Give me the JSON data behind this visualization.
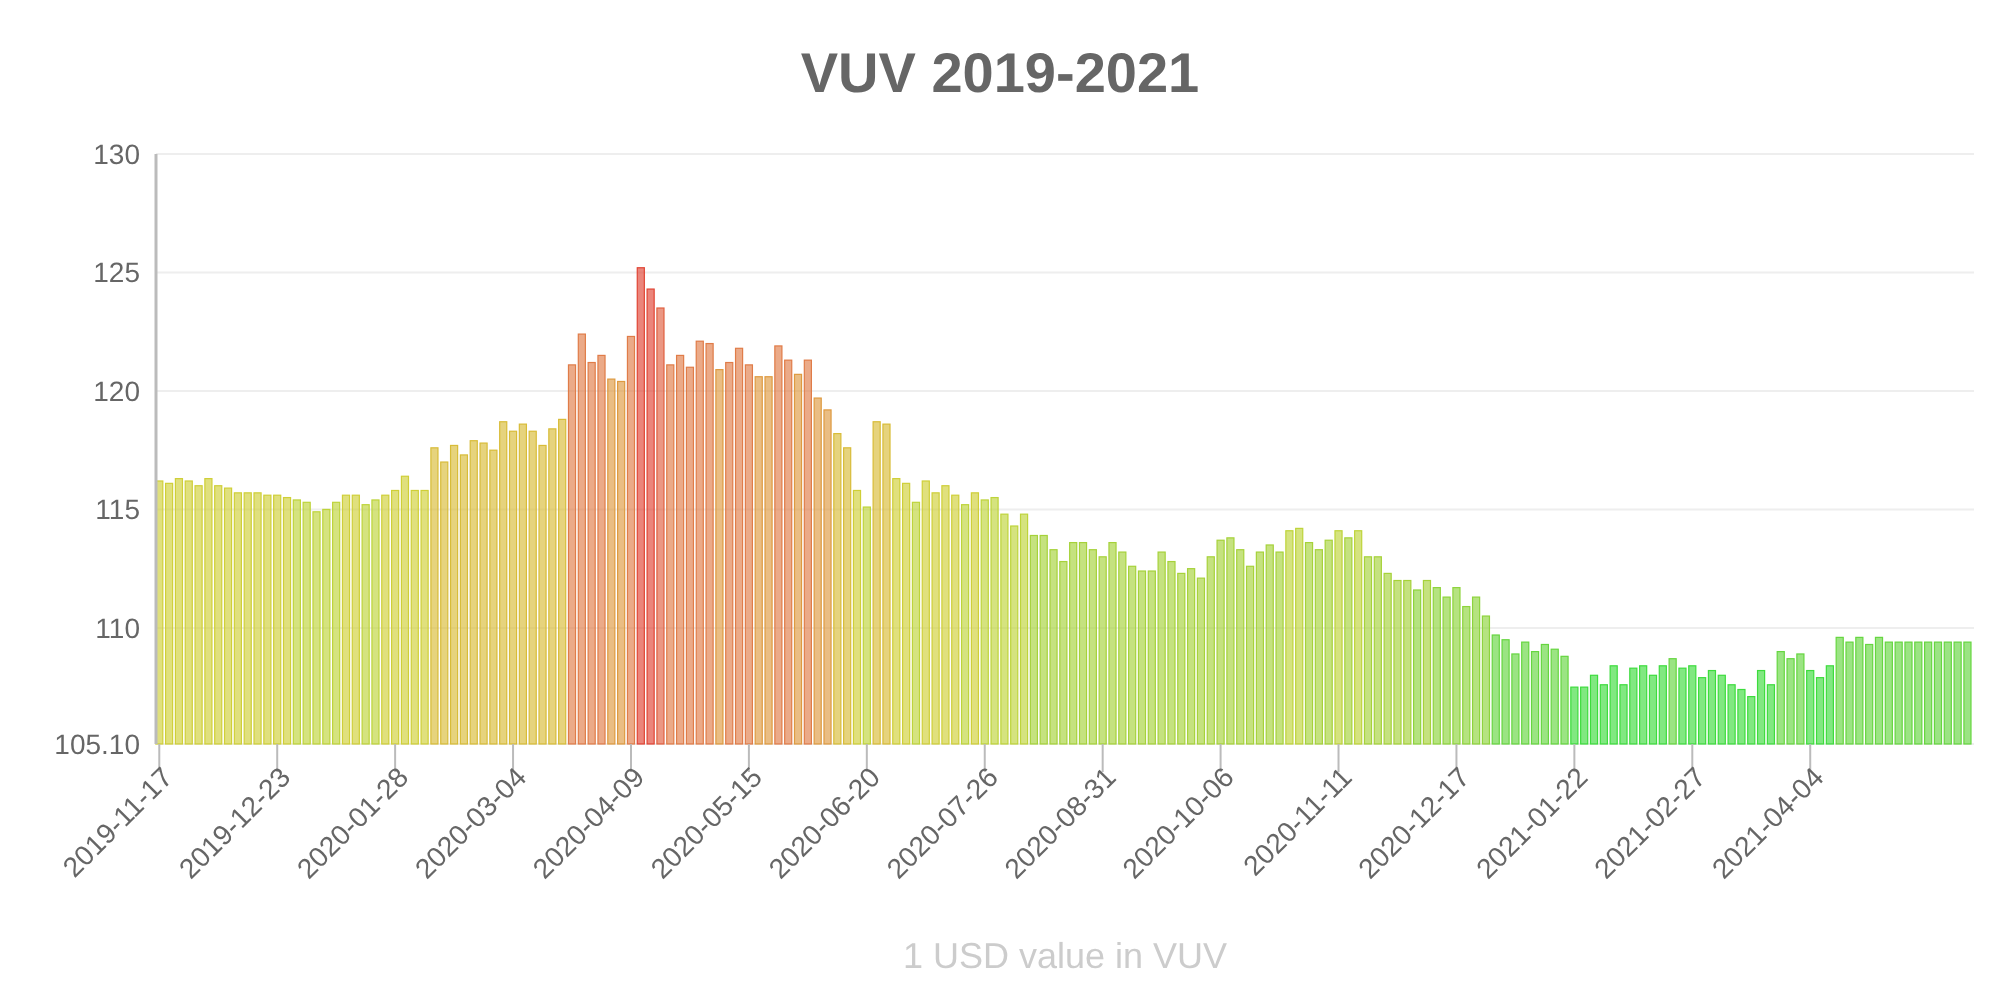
{
  "chart_data": {
    "type": "bar",
    "title": "VUV 2019-2021",
    "xlabel": "1 USD value in VUV",
    "x": [
      "2019-11-17",
      "2019-11-20",
      "2019-11-23",
      "2019-11-26",
      "2019-11-29",
      "2019-12-02",
      "2019-12-05",
      "2019-12-08",
      "2019-12-11",
      "2019-12-14",
      "2019-12-17",
      "2019-12-20",
      "2019-12-23",
      "2019-12-26",
      "2019-12-29",
      "2020-01-01",
      "2020-01-04",
      "2020-01-07",
      "2020-01-10",
      "2020-01-13",
      "2020-01-16",
      "2020-01-19",
      "2020-01-22",
      "2020-01-25",
      "2020-01-28",
      "2020-01-31",
      "2020-02-03",
      "2020-02-06",
      "2020-02-09",
      "2020-02-12",
      "2020-02-15",
      "2020-02-18",
      "2020-02-21",
      "2020-02-24",
      "2020-02-27",
      "2020-03-01",
      "2020-03-04",
      "2020-03-07",
      "2020-03-10",
      "2020-03-13",
      "2020-03-16",
      "2020-03-19",
      "2020-03-22",
      "2020-03-25",
      "2020-03-28",
      "2020-03-31",
      "2020-04-03",
      "2020-04-06",
      "2020-04-09",
      "2020-04-12",
      "2020-04-15",
      "2020-04-18",
      "2020-04-21",
      "2020-04-24",
      "2020-04-27",
      "2020-04-30",
      "2020-05-03",
      "2020-05-06",
      "2020-05-09",
      "2020-05-12",
      "2020-05-15",
      "2020-05-18",
      "2020-05-21",
      "2020-05-24",
      "2020-05-27",
      "2020-05-30",
      "2020-06-02",
      "2020-06-05",
      "2020-06-08",
      "2020-06-11",
      "2020-06-14",
      "2020-06-17",
      "2020-06-20",
      "2020-06-23",
      "2020-06-26",
      "2020-06-29",
      "2020-07-02",
      "2020-07-05",
      "2020-07-08",
      "2020-07-11",
      "2020-07-14",
      "2020-07-17",
      "2020-07-20",
      "2020-07-23",
      "2020-07-26",
      "2020-07-29",
      "2020-08-01",
      "2020-08-04",
      "2020-08-07",
      "2020-08-10",
      "2020-08-13",
      "2020-08-16",
      "2020-08-19",
      "2020-08-22",
      "2020-08-25",
      "2020-08-28",
      "2020-08-31",
      "2020-09-03",
      "2020-09-06",
      "2020-09-09",
      "2020-09-12",
      "2020-09-15",
      "2020-09-18",
      "2020-09-21",
      "2020-09-24",
      "2020-09-27",
      "2020-09-30",
      "2020-10-03",
      "2020-10-06",
      "2020-10-09",
      "2020-10-12",
      "2020-10-15",
      "2020-10-18",
      "2020-10-21",
      "2020-10-24",
      "2020-10-27",
      "2020-10-30",
      "2020-11-02",
      "2020-11-05",
      "2020-11-08",
      "2020-11-11",
      "2020-11-14",
      "2020-11-17",
      "2020-11-20",
      "2020-11-23",
      "2020-11-26",
      "2020-11-29",
      "2020-12-02",
      "2020-12-05",
      "2020-12-08",
      "2020-12-11",
      "2020-12-14",
      "2020-12-17",
      "2020-12-20",
      "2020-12-23",
      "2020-12-26",
      "2020-12-29",
      "2021-01-01",
      "2021-01-04",
      "2021-01-07",
      "2021-01-10",
      "2021-01-13",
      "2021-01-16",
      "2021-01-19",
      "2021-01-22",
      "2021-01-25",
      "2021-01-28",
      "2021-01-31",
      "2021-02-03",
      "2021-02-06",
      "2021-02-09",
      "2021-02-12",
      "2021-02-15",
      "2021-02-18",
      "2021-02-21",
      "2021-02-24",
      "2021-02-27",
      "2021-03-02",
      "2021-03-05",
      "2021-03-08",
      "2021-03-11",
      "2021-03-14",
      "2021-03-17",
      "2021-03-20",
      "2021-03-23",
      "2021-03-26",
      "2021-03-29",
      "2021-04-01",
      "2021-04-04",
      "2021-04-07",
      "2021-04-10",
      "2021-04-13",
      "2021-04-16",
      "2021-04-19",
      "2021-04-22",
      "2021-04-25",
      "2021-04-28",
      "2021-05-01",
      "2021-05-04",
      "2021-05-07",
      "2021-05-10",
      "2021-05-13",
      "2021-05-16",
      "2021-05-19",
      "2021-05-22"
    ],
    "values": [
      116.2,
      116.1,
      116.3,
      116.2,
      116.0,
      116.3,
      116.0,
      115.9,
      115.7,
      115.7,
      115.7,
      115.6,
      115.6,
      115.5,
      115.4,
      115.3,
      114.9,
      115.0,
      115.3,
      115.6,
      115.6,
      115.2,
      115.4,
      115.6,
      115.8,
      116.4,
      115.8,
      115.8,
      117.6,
      117.0,
      117.7,
      117.3,
      117.9,
      117.8,
      117.5,
      118.7,
      118.3,
      118.6,
      118.3,
      117.7,
      118.4,
      118.8,
      121.1,
      122.4,
      121.2,
      121.5,
      120.5,
      120.4,
      122.3,
      125.2,
      124.3,
      123.5,
      121.1,
      121.5,
      121.0,
      122.1,
      122.0,
      120.9,
      121.2,
      121.8,
      121.1,
      120.6,
      120.6,
      121.9,
      121.3,
      120.7,
      121.3,
      119.7,
      119.2,
      118.2,
      117.6,
      115.8,
      115.1,
      118.7,
      118.6,
      116.3,
      116.1,
      115.3,
      116.2,
      115.7,
      116.0,
      115.6,
      115.2,
      115.7,
      115.4,
      115.5,
      114.8,
      114.3,
      114.8,
      113.9,
      113.9,
      113.3,
      112.8,
      113.6,
      113.6,
      113.3,
      113.0,
      113.6,
      113.2,
      112.6,
      112.4,
      112.4,
      113.2,
      112.8,
      112.3,
      112.5,
      112.1,
      113.0,
      113.7,
      113.8,
      113.3,
      112.6,
      113.2,
      113.5,
      113.2,
      114.1,
      114.2,
      113.6,
      113.3,
      113.7,
      114.1,
      113.8,
      114.1,
      113.0,
      113.0,
      112.3,
      112.0,
      112.0,
      111.6,
      112.0,
      111.7,
      111.3,
      111.7,
      110.9,
      111.3,
      110.5,
      109.7,
      109.5,
      108.9,
      109.4,
      109.0,
      109.3,
      109.1,
      108.8,
      107.5,
      107.5,
      108.0,
      107.6,
      108.4,
      107.6,
      108.3,
      108.4,
      108.0,
      108.4,
      108.7,
      108.3,
      108.4,
      107.9,
      108.2,
      108.0,
      107.6,
      107.4,
      107.1,
      108.2,
      107.6,
      109.0,
      108.7,
      108.9,
      108.2,
      107.9,
      108.4,
      109.6,
      109.4,
      109.6,
      109.3,
      109.6,
      109.4,
      109.4,
      109.4,
      109.4,
      109.4,
      109.4,
      109.4,
      109.4,
      109.4
    ],
    "colors": [
      "#cfcf38",
      "#cfcf38",
      "#cfcf38",
      "#cfcf38",
      "#cfcf38",
      "#cfcf38",
      "#cfcf38",
      "#cfcf38",
      "#cfcf38",
      "#cfcf38",
      "#cfcf38",
      "#cfcf38",
      "#cfcf38",
      "#cfcf38",
      "#bed43a",
      "#bed43a",
      "#bed43a",
      "#bed43a",
      "#bed43a",
      "#cfcf38",
      "#cfcf38",
      "#bed43a",
      "#bed43a",
      "#cfcf38",
      "#cfcf38",
      "#cfcf38",
      "#cfcf38",
      "#cfcf38",
      "#d8bc38",
      "#d8bc38",
      "#d8bc38",
      "#d8bc38",
      "#d8bc38",
      "#d8bc38",
      "#d8bc38",
      "#d8bc38",
      "#d8bc38",
      "#d8bc38",
      "#d8bc38",
      "#d8bc38",
      "#d8bc38",
      "#d8bc38",
      "#e07c48",
      "#e07c48",
      "#e07c48",
      "#e07c48",
      "#de9a40",
      "#de9a40",
      "#e07c48",
      "#e04434",
      "#e04434",
      "#e06040",
      "#e07c48",
      "#e07c48",
      "#e07c48",
      "#e07c48",
      "#e07c48",
      "#de9a40",
      "#e07c48",
      "#e07c48",
      "#e07c48",
      "#de9a40",
      "#de9a40",
      "#e07c48",
      "#e07c48",
      "#de9a40",
      "#e07c48",
      "#de9a40",
      "#de9a40",
      "#d8bc38",
      "#d8bc38",
      "#cfcf38",
      "#bed43a",
      "#d8bc38",
      "#d8bc38",
      "#cfcf38",
      "#cfcf38",
      "#bed43a",
      "#cfcf38",
      "#cfcf38",
      "#cfcf38",
      "#cfcf38",
      "#bed43a",
      "#cfcf38",
      "#bed43a",
      "#bed43a",
      "#bed43a",
      "#bed43a",
      "#bed43a",
      "#a6d23a",
      "#a6d23a",
      "#a6d23a",
      "#a6d23a",
      "#a6d23a",
      "#a6d23a",
      "#a6d23a",
      "#a6d23a",
      "#a6d23a",
      "#a6d23a",
      "#a6d23a",
      "#a6d23a",
      "#a6d23a",
      "#a6d23a",
      "#a6d23a",
      "#a6d23a",
      "#a6d23a",
      "#a6d23a",
      "#a6d23a",
      "#a6d23a",
      "#a6d23a",
      "#a6d23a",
      "#a6d23a",
      "#a6d23a",
      "#a6d23a",
      "#a6d23a",
      "#bed43a",
      "#bed43a",
      "#a6d23a",
      "#a6d23a",
      "#a6d23a",
      "#bed43a",
      "#a6d23a",
      "#bed43a",
      "#a6d23a",
      "#a6d23a",
      "#a6d23a",
      "#a6d23a",
      "#a6d23a",
      "#8ed43c",
      "#a6d23a",
      "#8ed43c",
      "#8ed43c",
      "#8ed43c",
      "#8ed43c",
      "#8ed43c",
      "#8ed43c",
      "#66d640",
      "#66d640",
      "#66d640",
      "#66d640",
      "#66d640",
      "#66d640",
      "#66d640",
      "#66d640",
      "#3ddc3d",
      "#3ddc3d",
      "#3ddc3d",
      "#3ddc3d",
      "#3ddc3d",
      "#3ddc3d",
      "#3ddc3d",
      "#3ddc3d",
      "#3ddc3d",
      "#3ddc3d",
      "#66d640",
      "#3ddc3d",
      "#3ddc3d",
      "#3ddc3d",
      "#3ddc3d",
      "#3ddc3d",
      "#3ddc3d",
      "#3ddc3d",
      "#3ddc3d",
      "#3ddc3d",
      "#3ddc3d",
      "#66d640",
      "#66d640",
      "#66d640",
      "#3ddc3d",
      "#3ddc3d",
      "#3ddc3d",
      "#66d640",
      "#66d640",
      "#66d640",
      "#66d640",
      "#66d640",
      "#66d640",
      "#66d640",
      "#66d640",
      "#66d640",
      "#66d640",
      "#66d640",
      "#66d640",
      "#66d640",
      "#66d640"
    ],
    "xlim": [
      "2019-11-16",
      "2021-05-24"
    ],
    "xticks": [
      "2019-11-17",
      "2019-12-23",
      "2020-01-28",
      "2020-03-04",
      "2020-04-09",
      "2020-05-15",
      "2020-06-20",
      "2020-07-26",
      "2020-08-31",
      "2020-10-06",
      "2020-11-11",
      "2020-12-17",
      "2021-01-22",
      "2021-02-27",
      "2021-04-04"
    ],
    "ylim": [
      105.1,
      130
    ],
    "yticks": [
      {
        "value": 105.1,
        "label": "105.10"
      },
      110,
      115,
      120,
      125,
      130
    ],
    "grid": "y"
  }
}
